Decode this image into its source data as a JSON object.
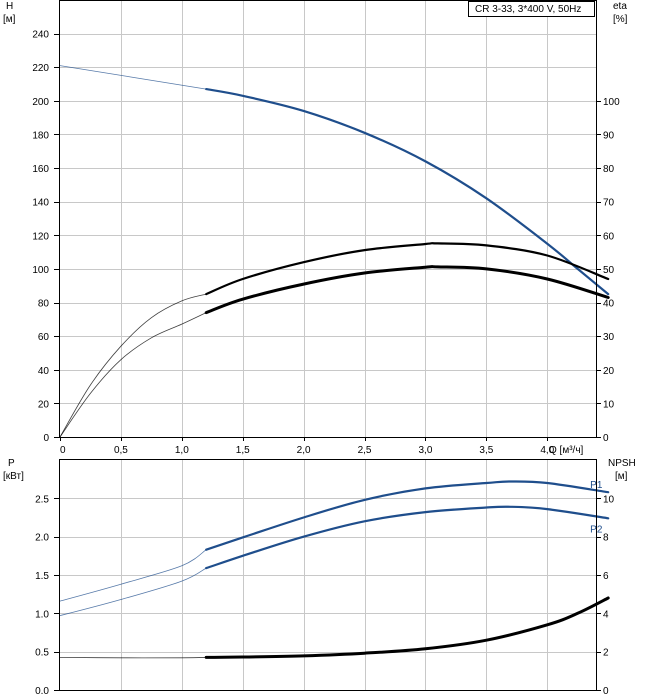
{
  "colors": {
    "blue": "#1f4e8c",
    "black": "#000000",
    "grid": "#c8c8c8"
  },
  "chart_data": [
    {
      "type": "line",
      "title": "CR 3-33, 3*400 V, 50Hz",
      "xlabel": "Q [м³/ч]",
      "ylabel_left": "H",
      "ylabel_left_unit": "[м]",
      "ylabel_right": "eta",
      "ylabel_right_unit": "[%]",
      "x_ticks": [
        "0",
        "0,5",
        "1,0",
        "1,5",
        "2,0",
        "2,5",
        "3,0",
        "3,5",
        "4,0"
      ],
      "y_left_ticks": [
        "0",
        "20",
        "40",
        "60",
        "80",
        "100",
        "120",
        "140",
        "160",
        "180",
        "200",
        "220",
        "240"
      ],
      "y_right_ticks": [
        "0",
        "10",
        "20",
        "30",
        "40",
        "50",
        "60",
        "70",
        "80",
        "90",
        "100"
      ],
      "xlim": [
        0,
        4.4
      ],
      "ylim_left": [
        0,
        260
      ],
      "ylim_right": [
        0,
        130
      ],
      "series": [
        {
          "axis": "left",
          "color": "#1f4e8c",
          "x": [
            0,
            1.2,
            1.5,
            2.0,
            2.5,
            3.0,
            3.5,
            4.0,
            4.25,
            4.5
          ],
          "y": [
            221,
            207,
            203,
            194,
            181,
            164,
            142,
            115,
            100,
            85
          ],
          "solid_from_x": 1.2
        },
        {
          "axis": "right",
          "color": "#000000",
          "x": [
            0,
            0.25,
            0.5,
            0.75,
            1.0,
            1.2,
            1.5,
            2.0,
            2.5,
            3.0,
            3.1,
            3.5,
            4.0,
            4.5
          ],
          "y": [
            0,
            15.5,
            27,
            35.5,
            40.5,
            42.5,
            47,
            52,
            55.6,
            57.4,
            57.6,
            57,
            54,
            47
          ],
          "solid_from_x": 1.2
        },
        {
          "axis": "right",
          "color": "#000000",
          "x": [
            0,
            0.25,
            0.5,
            0.75,
            1.0,
            1.2,
            1.5,
            2.0,
            2.5,
            3.0,
            3.1,
            3.5,
            4.0,
            4.5
          ],
          "y": [
            0,
            13,
            23,
            29.5,
            33.6,
            37,
            41,
            45.5,
            48.8,
            50.5,
            50.6,
            50,
            47,
            41.5
          ],
          "solid_from_x": 1.2,
          "thick": true
        }
      ]
    },
    {
      "type": "line",
      "ylabel_left": "P",
      "ylabel_left_unit": "[кВт]",
      "ylabel_right": "NPSH",
      "ylabel_right_unit": "[м]",
      "xlim": [
        0,
        4.4
      ],
      "ylim_left": [
        0,
        3.0
      ],
      "ylim_right": [
        0,
        12
      ],
      "y_left_ticks": [
        "0.0",
        "0.5",
        "1.0",
        "1.5",
        "2.0",
        "2.5"
      ],
      "y_right_ticks": [
        "0",
        "2",
        "4",
        "6",
        "8",
        "10"
      ],
      "series": [
        {
          "name": "P1",
          "axis": "left",
          "color": "#1f4e8c",
          "x": [
            0,
            0.5,
            1.0,
            1.2,
            1.5,
            2.0,
            2.5,
            3.0,
            3.5,
            3.7,
            4.0,
            4.5
          ],
          "y": [
            1.16,
            1.38,
            1.62,
            1.83,
            1.99,
            2.25,
            2.48,
            2.63,
            2.7,
            2.72,
            2.7,
            2.58
          ],
          "solid_from_x": 1.2
        },
        {
          "name": "P2",
          "axis": "left",
          "color": "#1f4e8c",
          "x": [
            0,
            0.5,
            1.0,
            1.2,
            1.5,
            2.0,
            2.5,
            3.0,
            3.5,
            3.7,
            4.0,
            4.5
          ],
          "y": [
            0.97,
            1.18,
            1.42,
            1.59,
            1.75,
            2.0,
            2.2,
            2.32,
            2.38,
            2.39,
            2.36,
            2.24
          ],
          "solid_from_x": 1.2
        },
        {
          "axis": "right",
          "color": "#000000",
          "x": [
            0,
            0.5,
            1.0,
            1.2,
            1.5,
            2.0,
            2.5,
            3.0,
            3.5,
            4.0,
            4.25,
            4.5
          ],
          "y": [
            1.7,
            1.68,
            1.68,
            1.7,
            1.72,
            1.78,
            1.92,
            2.15,
            2.6,
            3.4,
            4.0,
            4.8
          ],
          "solid_from_x": 1.2,
          "thick": true
        }
      ]
    }
  ]
}
